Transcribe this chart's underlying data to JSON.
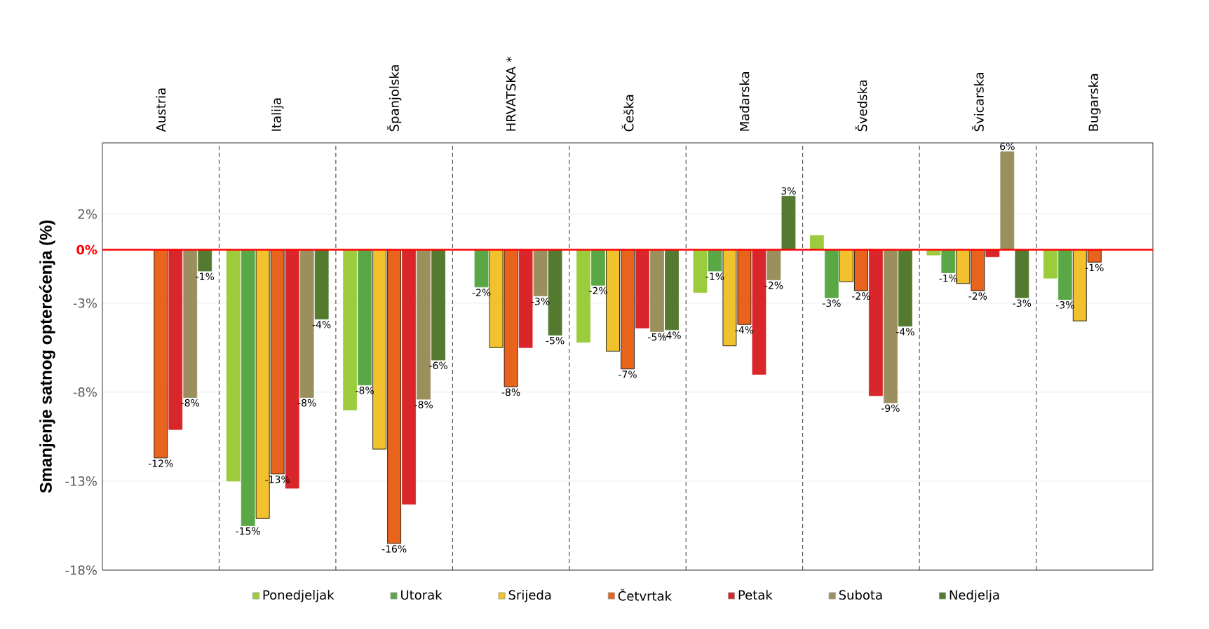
{
  "chart_data": {
    "type": "bar",
    "ylabel": "Smanjenje satnog opterećenja (%)",
    "categories": [
      "Austria",
      "Italija",
      "Španjolska",
      "HRVATSKA *",
      "Češka",
      "Mađarska",
      "Švedska",
      "Švicarska",
      "Bugarska"
    ],
    "series": [
      {
        "name": "Ponedjeljak",
        "color": "#9ccc3c",
        "values": [
          null,
          -13.0,
          -9.0,
          null,
          -5.2,
          -2.4,
          0.8,
          -0.3,
          -1.6
        ],
        "value_labels": [
          null,
          null,
          null,
          null,
          null,
          null,
          null,
          null,
          null
        ]
      },
      {
        "name": "Utorak",
        "color": "#5aa845",
        "values": [
          null,
          -15.5,
          -7.6,
          -2.1,
          -2.0,
          -1.2,
          -2.7,
          -1.3,
          -2.8
        ],
        "value_labels": [
          null,
          "-15%",
          "-8%",
          "-2%",
          "-2%",
          "-1%",
          "-3%",
          "-1%",
          "-3%"
        ]
      },
      {
        "name": "Srijeda",
        "color": "#f2c12e",
        "values": [
          null,
          -15.1,
          -11.2,
          -5.5,
          -5.7,
          -5.4,
          -1.8,
          -1.9,
          -4.0
        ],
        "value_labels": [
          null,
          null,
          null,
          null,
          null,
          null,
          null,
          null,
          null
        ]
      },
      {
        "name": "Četvrtak",
        "color": "#e8641c",
        "values": [
          -11.7,
          -12.6,
          -16.5,
          -7.7,
          -6.7,
          -4.2,
          -2.3,
          -2.3,
          -0.7
        ],
        "value_labels": [
          "-12%",
          "-13%",
          "-16%",
          "-8%",
          "-7%",
          "-4%",
          "-2%",
          "-2%",
          "-1%"
        ]
      },
      {
        "name": "Petak",
        "color": "#d9262b",
        "values": [
          -10.1,
          -13.4,
          -14.3,
          -5.5,
          -4.4,
          -7.0,
          -8.2,
          -0.4,
          null
        ],
        "value_labels": [
          null,
          null,
          null,
          null,
          null,
          null,
          null,
          null,
          null
        ]
      },
      {
        "name": "Subota",
        "color": "#9b8f5e",
        "values": [
          -8.3,
          -8.3,
          -8.4,
          -2.6,
          -4.6,
          -1.7,
          -8.6,
          5.5,
          null
        ],
        "value_labels": [
          "-8%",
          "-8%",
          "-8%",
          "-3%",
          "-5%",
          "-2%",
          "-9%",
          "6%",
          null
        ]
      },
      {
        "name": "Nedjelja",
        "color": "#537a2f",
        "values": [
          -1.2,
          -3.9,
          -6.2,
          -4.8,
          -4.5,
          3.0,
          -4.3,
          -2.7,
          null
        ],
        "value_labels": [
          "-1%",
          "-4%",
          "-6%",
          "-5%",
          "-4%",
          "3%",
          "-4%",
          "-3%",
          null
        ]
      }
    ],
    "ylim": [
      -18,
      6
    ],
    "yticks": [
      {
        "value": 2,
        "label": "2%"
      },
      {
        "value": -3,
        "label": "-3%"
      },
      {
        "value": -8,
        "label": "-8%"
      },
      {
        "value": -13,
        "label": "-13%"
      },
      {
        "value": -18,
        "label": "-18%"
      }
    ],
    "ref_lines": [
      {
        "axis": "y",
        "value": 0,
        "label": "0%",
        "color": "#ff0000"
      }
    ],
    "grid": "y",
    "legend": "bottom"
  }
}
